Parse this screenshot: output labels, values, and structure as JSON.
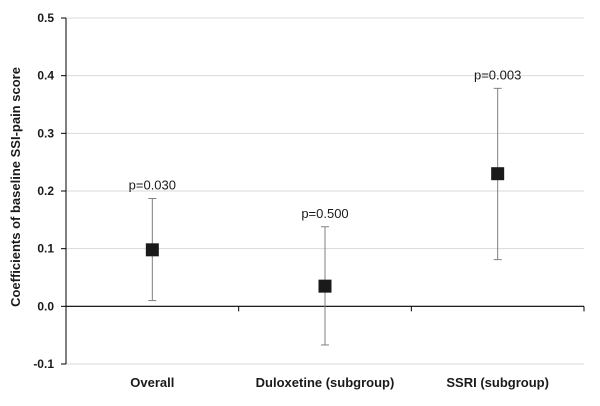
{
  "chart_data": {
    "type": "scatter",
    "title": "",
    "xlabel": "",
    "ylabel": "Coefficients of baseline SSI-pain score",
    "ylim": [
      -0.1,
      0.5
    ],
    "yticks": [
      "0.5",
      "0.4",
      "0.3",
      "0.2",
      "0.1",
      "0.0",
      "-0.1"
    ],
    "grid": true,
    "categories": [
      "Overall",
      "Duloxetine (subgroup)",
      "SSRI (subgroup)"
    ],
    "points": [
      {
        "category": "Overall",
        "estimate": 0.098,
        "ci_lower": 0.01,
        "ci_upper": 0.187,
        "annotation": "p=0.030"
      },
      {
        "category": "Duloxetine (subgroup)",
        "estimate": 0.035,
        "ci_lower": -0.067,
        "ci_upper": 0.138,
        "annotation": "p=0.500"
      },
      {
        "category": "SSRI (subgroup)",
        "estimate": 0.23,
        "ci_lower": 0.081,
        "ci_upper": 0.378,
        "annotation": "p=0.003"
      }
    ],
    "colors": {
      "marker": "#1a1a1a",
      "errorbar": "#808080",
      "grid": "#d9d9d9",
      "axis": "#000000"
    }
  }
}
